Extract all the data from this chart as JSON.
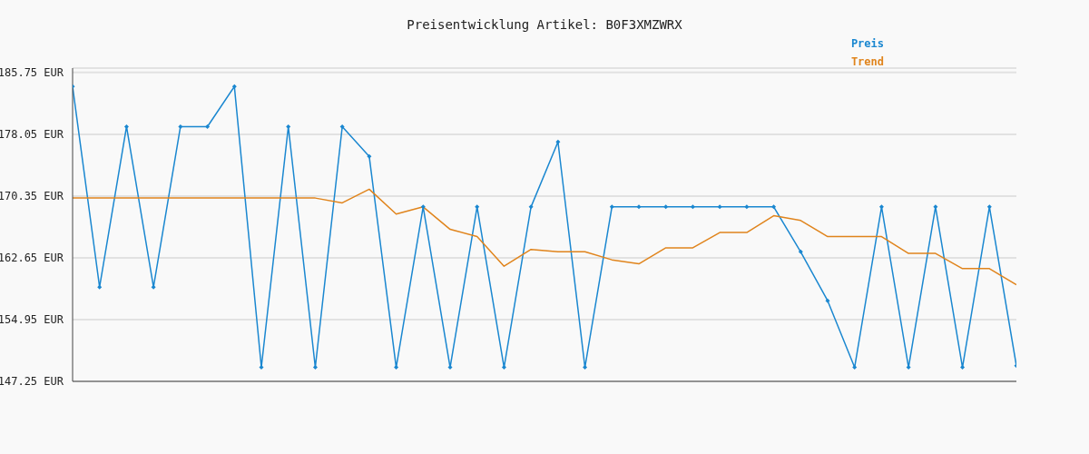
{
  "chart_data": {
    "type": "line",
    "title": "Preisentwicklung Artikel: B0F3XMZWRX",
    "categories": [
      null,
      null,
      null,
      null,
      null,
      null,
      null,
      null,
      null,
      null,
      null,
      null,
      null,
      null,
      null,
      null,
      null,
      null,
      null,
      null,
      null,
      null,
      null,
      null,
      null,
      null,
      null,
      null,
      null,
      null,
      null,
      null,
      null,
      null,
      null,
      null
    ],
    "series": [
      {
        "name": "Preis",
        "color": "#1a87d0",
        "marker": "diamond",
        "values": [
          184.0,
          159.0,
          179.0,
          159.0,
          179.0,
          179.0,
          184.0,
          149.0,
          179.0,
          149.0,
          179.0,
          175.3,
          149.0,
          169.0,
          149.0,
          169.0,
          149.0,
          169.0,
          177.1,
          149.0,
          169.0,
          169.0,
          169.0,
          169.0,
          169.0,
          169.0,
          169.0,
          163.4,
          157.3,
          149.0,
          169.0,
          149.0,
          169.0,
          149.0,
          169.0,
          149.2
        ]
      },
      {
        "name": "Trend",
        "color": "#e0841c",
        "marker": "none",
        "values": [
          170.1,
          170.1,
          170.1,
          170.1,
          170.1,
          170.1,
          170.1,
          170.1,
          170.1,
          170.1,
          169.5,
          171.2,
          168.1,
          169.0,
          166.2,
          165.3,
          161.6,
          163.7,
          163.4,
          163.4,
          162.4,
          161.9,
          163.9,
          163.9,
          165.8,
          165.8,
          167.9,
          167.3,
          165.3,
          165.3,
          165.3,
          163.2,
          163.2,
          161.3,
          161.3,
          159.3
        ]
      }
    ],
    "ylim": [
      147.25,
      186.3
    ],
    "yticks": [
      {
        "value": 147.25,
        "label": "147.25 EUR"
      },
      {
        "value": 154.95,
        "label": "154.95 EUR"
      },
      {
        "value": 162.65,
        "label": "162.65 EUR"
      },
      {
        "value": 170.35,
        "label": "170.35 EUR"
      },
      {
        "value": 178.05,
        "label": "178.05 EUR"
      },
      {
        "value": 185.75,
        "label": "185.75 EUR"
      }
    ],
    "grid": "y",
    "legend": "top right",
    "tick_labels": "y"
  }
}
